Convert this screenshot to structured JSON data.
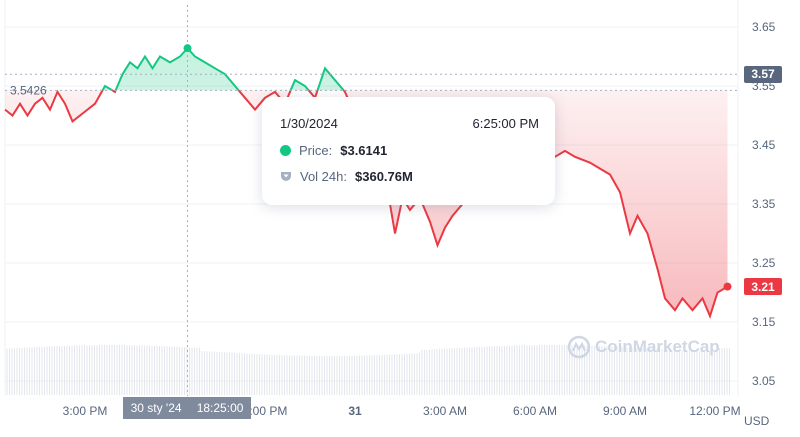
{
  "chart_data": {
    "type": "line",
    "currency_label": "USD",
    "reference_price": "3.5426",
    "current_price_badge": "3.21",
    "crosshair_price_badge": "3.57",
    "y_ticks": [
      "3.65",
      "3.55",
      "3.45",
      "3.35",
      "3.25",
      "3.15",
      "3.05"
    ],
    "ylim": [
      3.05,
      3.65
    ],
    "x_ticks": [
      {
        "label": "3:00 PM",
        "t": "2024-01-30T15:00"
      },
      {
        "label": "9:00 PM",
        "t": "2024-01-30T21:00"
      },
      {
        "label": "31",
        "t": "2024-01-31T00:00"
      },
      {
        "label": "3:00 AM",
        "t": "2024-01-31T03:00"
      },
      {
        "label": "6:00 AM",
        "t": "2024-01-31T06:00"
      },
      {
        "label": "9:00 AM",
        "t": "2024-01-31T09:00"
      },
      {
        "label": "12:00 PM",
        "t": "2024-01-31T12:00"
      }
    ],
    "colors": {
      "up": "#16c784",
      "down": "#ea3943",
      "grid": "#eff2f5"
    },
    "series": [
      [
        "2024-01-30T12:20",
        3.51
      ],
      [
        "2024-01-30T12:35",
        3.5
      ],
      [
        "2024-01-30T12:50",
        3.52
      ],
      [
        "2024-01-30T13:05",
        3.5
      ],
      [
        "2024-01-30T13:20",
        3.52
      ],
      [
        "2024-01-30T13:35",
        3.53
      ],
      [
        "2024-01-30T13:50",
        3.51
      ],
      [
        "2024-01-30T14:05",
        3.54
      ],
      [
        "2024-01-30T14:20",
        3.52
      ],
      [
        "2024-01-30T14:35",
        3.49
      ],
      [
        "2024-01-30T14:50",
        3.5
      ],
      [
        "2024-01-30T15:05",
        3.51
      ],
      [
        "2024-01-30T15:20",
        3.52
      ],
      [
        "2024-01-30T15:40",
        3.55
      ],
      [
        "2024-01-30T16:00",
        3.54
      ],
      [
        "2024-01-30T16:15",
        3.57
      ],
      [
        "2024-01-30T16:30",
        3.59
      ],
      [
        "2024-01-30T16:45",
        3.58
      ],
      [
        "2024-01-30T17:00",
        3.6
      ],
      [
        "2024-01-30T17:15",
        3.58
      ],
      [
        "2024-01-30T17:30",
        3.6
      ],
      [
        "2024-01-30T17:50",
        3.59
      ],
      [
        "2024-01-30T18:10",
        3.6
      ],
      [
        "2024-01-30T18:25",
        3.6141
      ],
      [
        "2024-01-30T18:40",
        3.6
      ],
      [
        "2024-01-30T19:00",
        3.59
      ],
      [
        "2024-01-30T19:20",
        3.58
      ],
      [
        "2024-01-30T19:40",
        3.57
      ],
      [
        "2024-01-30T20:00",
        3.55
      ],
      [
        "2024-01-30T20:20",
        3.53
      ],
      [
        "2024-01-30T20:40",
        3.51
      ],
      [
        "2024-01-30T21:00",
        3.53
      ],
      [
        "2024-01-30T21:20",
        3.54
      ],
      [
        "2024-01-30T21:40",
        3.52
      ],
      [
        "2024-01-30T22:00",
        3.56
      ],
      [
        "2024-01-30T22:20",
        3.55
      ],
      [
        "2024-01-30T22:40",
        3.53
      ],
      [
        "2024-01-30T23:00",
        3.58
      ],
      [
        "2024-01-30T23:20",
        3.56
      ],
      [
        "2024-01-30T23:40",
        3.54
      ],
      [
        "2024-01-31T00:00",
        3.5
      ],
      [
        "2024-01-31T00:30",
        3.42
      ],
      [
        "2024-01-31T00:50",
        3.37
      ],
      [
        "2024-01-31T01:10",
        3.35
      ],
      [
        "2024-01-31T01:20",
        3.3
      ],
      [
        "2024-01-31T01:35",
        3.36
      ],
      [
        "2024-01-31T01:50",
        3.34
      ],
      [
        "2024-01-31T02:10",
        3.36
      ],
      [
        "2024-01-31T02:30",
        3.32
      ],
      [
        "2024-01-31T02:45",
        3.28
      ],
      [
        "2024-01-31T03:00",
        3.31
      ],
      [
        "2024-01-31T03:15",
        3.33
      ],
      [
        "2024-01-31T03:35",
        3.35
      ],
      [
        "2024-01-31T04:00",
        3.38
      ],
      [
        "2024-01-31T04:40",
        3.37
      ],
      [
        "2024-01-31T05:20",
        3.36
      ],
      [
        "2024-01-31T05:50",
        3.35
      ],
      [
        "2024-01-31T06:20",
        3.42
      ],
      [
        "2024-01-31T06:40",
        3.43
      ],
      [
        "2024-01-31T07:00",
        3.44
      ],
      [
        "2024-01-31T07:20",
        3.43
      ],
      [
        "2024-01-31T07:50",
        3.42
      ],
      [
        "2024-01-31T08:10",
        3.41
      ],
      [
        "2024-01-31T08:30",
        3.4
      ],
      [
        "2024-01-31T08:50",
        3.37
      ],
      [
        "2024-01-31T09:10",
        3.3
      ],
      [
        "2024-01-31T09:25",
        3.33
      ],
      [
        "2024-01-31T09:45",
        3.3
      ],
      [
        "2024-01-31T10:05",
        3.24
      ],
      [
        "2024-01-31T10:20",
        3.19
      ],
      [
        "2024-01-31T10:40",
        3.17
      ],
      [
        "2024-01-31T10:55",
        3.19
      ],
      [
        "2024-01-31T11:15",
        3.17
      ],
      [
        "2024-01-31T11:35",
        3.19
      ],
      [
        "2024-01-31T11:50",
        3.16
      ],
      [
        "2024-01-31T12:05",
        3.2
      ],
      [
        "2024-01-31T12:25",
        3.21
      ]
    ]
  },
  "tooltip": {
    "date": "1/30/2024",
    "time": "6:25:00 PM",
    "price_label": "Price:",
    "price_value": "$3.6141",
    "vol_label": "Vol 24h:",
    "vol_value": "$360.76M"
  },
  "crosshair": {
    "date": "30 sty '24",
    "time": "18:25:00",
    "t": "2024-01-30T18:25"
  },
  "watermark": "CoinMarketCap"
}
